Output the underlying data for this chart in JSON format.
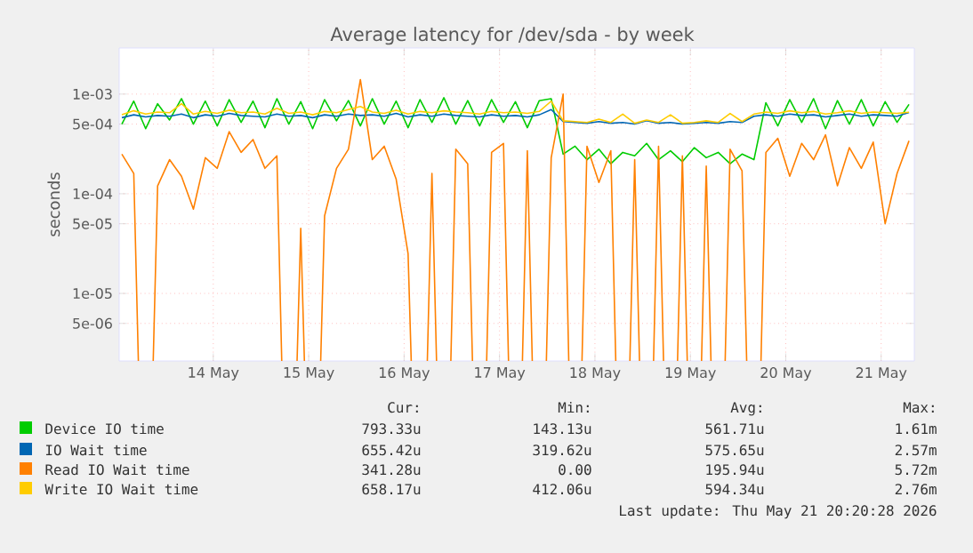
{
  "chart_data": {
    "type": "line",
    "title": "Average latency for /dev/sda - by week",
    "ylabel": "seconds",
    "x": [
      "2026-05-13T13:00",
      "2026-05-13T16:00",
      "2026-05-13T19:00",
      "2026-05-13T22:00",
      "2026-05-14T01:00",
      "2026-05-14T04:00",
      "2026-05-14T07:00",
      "2026-05-14T10:00",
      "2026-05-14T13:00",
      "2026-05-14T16:00",
      "2026-05-14T19:00",
      "2026-05-14T22:00",
      "2026-05-15T01:00",
      "2026-05-15T04:00",
      "2026-05-15T07:00",
      "2026-05-15T10:00",
      "2026-05-15T13:00",
      "2026-05-15T16:00",
      "2026-05-15T19:00",
      "2026-05-15T22:00",
      "2026-05-16T01:00",
      "2026-05-16T04:00",
      "2026-05-16T07:00",
      "2026-05-16T10:00",
      "2026-05-16T13:00",
      "2026-05-16T16:00",
      "2026-05-16T19:00",
      "2026-05-16T22:00",
      "2026-05-17T01:00",
      "2026-05-17T04:00",
      "2026-05-17T07:00",
      "2026-05-17T10:00",
      "2026-05-17T13:00",
      "2026-05-17T16:00",
      "2026-05-17T19:00",
      "2026-05-17T22:00",
      "2026-05-18T01:00",
      "2026-05-18T04:00",
      "2026-05-18T07:00",
      "2026-05-18T10:00",
      "2026-05-18T13:00",
      "2026-05-18T16:00",
      "2026-05-18T19:00",
      "2026-05-18T22:00",
      "2026-05-19T01:00",
      "2026-05-19T04:00",
      "2026-05-19T07:00",
      "2026-05-19T10:00",
      "2026-05-19T13:00",
      "2026-05-19T16:00",
      "2026-05-19T19:00",
      "2026-05-19T22:00",
      "2026-05-20T01:00",
      "2026-05-20T04:00",
      "2026-05-20T07:00",
      "2026-05-20T10:00",
      "2026-05-20T13:00",
      "2026-05-20T16:00",
      "2026-05-20T19:00",
      "2026-05-20T22:00",
      "2026-05-21T01:00",
      "2026-05-21T04:00",
      "2026-05-21T07:00",
      "2026-05-21T10:00",
      "2026-05-21T13:00",
      "2026-05-21T16:00",
      "2026-05-21T19:00"
    ],
    "series": [
      {
        "name": "Device IO time",
        "color": "#00cc00",
        "values": [
          0.0005,
          0.00085,
          0.00045,
          0.0008,
          0.00055,
          0.0009,
          0.0005,
          0.00085,
          0.00048,
          0.00088,
          0.00052,
          0.00085,
          0.00046,
          0.0009,
          0.0005,
          0.00084,
          0.00045,
          0.00088,
          0.00054,
          0.00086,
          0.00048,
          0.0009,
          0.0005,
          0.00085,
          0.00046,
          0.00088,
          0.00052,
          0.00092,
          0.0005,
          0.00086,
          0.00048,
          0.00088,
          0.00052,
          0.00084,
          0.00046,
          0.00086,
          0.0009,
          0.00025,
          0.0003,
          0.00022,
          0.00028,
          0.0002,
          0.00026,
          0.00024,
          0.00032,
          0.00022,
          0.00027,
          0.00021,
          0.00029,
          0.00023,
          0.00026,
          0.0002,
          0.00025,
          0.00022,
          0.00082,
          0.00048,
          0.00088,
          0.00052,
          0.0009,
          0.00045,
          0.00086,
          0.0005,
          0.00088,
          0.00048,
          0.00084,
          0.00052,
          0.00079
        ]
      },
      {
        "name": "IO Wait time",
        "color": "#0066b3",
        "values": [
          0.00058,
          0.00062,
          0.00059,
          0.00061,
          0.0006,
          0.00063,
          0.00058,
          0.00062,
          0.0006,
          0.00064,
          0.00061,
          0.0006,
          0.00059,
          0.00063,
          0.0006,
          0.00061,
          0.00058,
          0.00062,
          0.0006,
          0.00063,
          0.00061,
          0.00062,
          0.0006,
          0.00064,
          0.00059,
          0.00062,
          0.0006,
          0.00063,
          0.00061,
          0.0006,
          0.00059,
          0.00062,
          0.0006,
          0.00061,
          0.00059,
          0.00062,
          0.0007,
          0.00053,
          0.00052,
          0.00051,
          0.00053,
          0.00051,
          0.00052,
          0.0005,
          0.00054,
          0.00051,
          0.00052,
          0.0005,
          0.00051,
          0.00052,
          0.00051,
          0.00053,
          0.00052,
          0.0006,
          0.00062,
          0.0006,
          0.00063,
          0.00061,
          0.00062,
          0.00059,
          0.00061,
          0.00063,
          0.0006,
          0.00062,
          0.00061,
          0.0006,
          0.000655
        ]
      },
      {
        "name": "Read IO Wait time",
        "color": "#ff8000",
        "values": [
          0.00025,
          0.00016,
          null,
          0.00012,
          0.00022,
          0.00015,
          7e-05,
          0.00023,
          0.00018,
          0.00042,
          0.00026,
          0.00035,
          0.00018,
          0.00024,
          null,
          4.5e-05,
          null,
          6e-05,
          0.00018,
          0.00028,
          0.0014,
          0.00022,
          0.0003,
          0.00014,
          2.5e-05,
          null,
          0.00016,
          null,
          0.00028,
          0.0002,
          null,
          0.00026,
          0.00032,
          null,
          0.00027,
          null,
          0.00023,
          0.001,
          null,
          0.0003,
          0.00013,
          0.00027,
          null,
          0.00022,
          null,
          0.0003,
          null,
          0.00024,
          null,
          0.00019,
          null,
          0.00028,
          0.00017,
          null,
          0.00026,
          0.00036,
          0.00015,
          0.00032,
          0.00022,
          0.00039,
          0.00012,
          0.00029,
          0.00018,
          0.00033,
          5e-05,
          0.00016,
          0.00034
        ]
      },
      {
        "name": "Write IO Wait time",
        "color": "#ffcc00",
        "values": [
          0.00062,
          0.00068,
          0.00063,
          0.00066,
          0.00065,
          0.0008,
          0.00063,
          0.00067,
          0.00064,
          0.00069,
          0.00065,
          0.00066,
          0.00063,
          0.00072,
          0.00064,
          0.00066,
          0.00062,
          0.00067,
          0.00065,
          0.0007,
          0.00075,
          0.00066,
          0.00064,
          0.00069,
          0.00063,
          0.00067,
          0.00065,
          0.00068,
          0.00066,
          0.00065,
          0.00063,
          0.00067,
          0.00065,
          0.00066,
          0.00064,
          0.00067,
          0.00085,
          0.00054,
          0.00053,
          0.00052,
          0.00056,
          0.00052,
          0.00063,
          0.00051,
          0.00055,
          0.00052,
          0.00062,
          0.00051,
          0.00052,
          0.00054,
          0.00052,
          0.00064,
          0.00053,
          0.00063,
          0.00066,
          0.00064,
          0.00068,
          0.00065,
          0.00067,
          0.00063,
          0.00065,
          0.00068,
          0.00064,
          0.00066,
          0.00065,
          0.00064,
          0.000658
        ]
      }
    ],
    "xlim": [
      "2026-05-13T12:20",
      "2026-05-21T20:20"
    ],
    "xticks": [
      {
        "value": "2026-05-14T12:00",
        "label": "14 May"
      },
      {
        "value": "2026-05-15T12:00",
        "label": "15 May"
      },
      {
        "value": "2026-05-16T12:00",
        "label": "16 May"
      },
      {
        "value": "2026-05-17T12:00",
        "label": "17 May"
      },
      {
        "value": "2026-05-18T12:00",
        "label": "18 May"
      },
      {
        "value": "2026-05-19T12:00",
        "label": "19 May"
      },
      {
        "value": "2026-05-20T12:00",
        "label": "20 May"
      },
      {
        "value": "2026-05-21T12:00",
        "label": "21 May"
      }
    ],
    "ylim": [
      2.1e-06,
      0.0029
    ],
    "yticks": [
      {
        "value": 5e-06,
        "label": "5e-06"
      },
      {
        "value": 1e-05,
        "label": "1e-05"
      },
      {
        "value": 5e-05,
        "label": "5e-05"
      },
      {
        "value": 0.0001,
        "label": "1e-04"
      },
      {
        "value": 0.0005,
        "label": "5e-04"
      },
      {
        "value": 0.001,
        "label": "1e-03"
      }
    ],
    "log": "y",
    "grid": true,
    "legend": "bottom",
    "annotations": [
      "Cur:",
      "Min:",
      "Avg:",
      "Max:",
      "793.33u",
      "143.13u",
      "561.71u",
      "1.61m",
      "655.42u",
      "319.62u",
      "575.65u",
      "2.57m",
      "341.28u",
      "0.00",
      "195.94u",
      "5.72m",
      "658.17u",
      "412.06u",
      "594.34u",
      "2.76m",
      "Last update: Thu May 21 20:20:28 2026"
    ]
  }
}
